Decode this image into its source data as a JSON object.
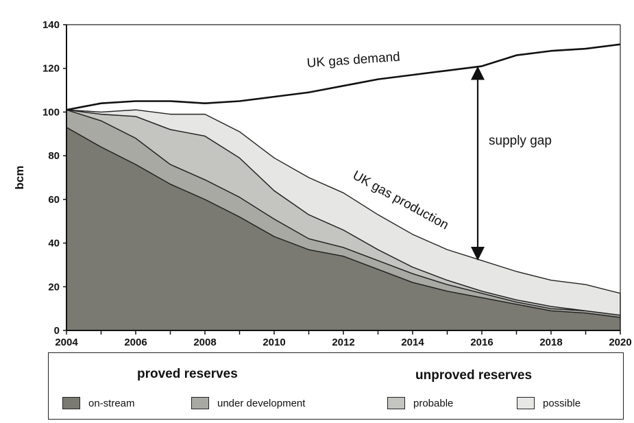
{
  "chart_data": {
    "type": "area",
    "stacked": true,
    "title": "",
    "xlabel": "",
    "ylabel": "bcm",
    "xlim": [
      2004,
      2020
    ],
    "ylim": [
      0,
      140
    ],
    "xticks": [
      2004,
      2006,
      2008,
      2010,
      2012,
      2014,
      2016,
      2018,
      2020
    ],
    "yticks": [
      0,
      20,
      40,
      60,
      80,
      100,
      120,
      140
    ],
    "x": [
      2004,
      2005,
      2006,
      2007,
      2008,
      2009,
      2010,
      2011,
      2012,
      2013,
      2014,
      2015,
      2016,
      2017,
      2018,
      2019,
      2020
    ],
    "series": [
      {
        "name": "on-stream",
        "color": "#7a7a72",
        "values": [
          93,
          84,
          76,
          67,
          60,
          52,
          43,
          37,
          34,
          28,
          22,
          18,
          15,
          12,
          9,
          8,
          6
        ]
      },
      {
        "name": "under development",
        "color": "#a9a9a4",
        "values": [
          8,
          12,
          12,
          9,
          9,
          9,
          8,
          5,
          4,
          4,
          4,
          3,
          2,
          1,
          1,
          1,
          1
        ]
      },
      {
        "name": "probable",
        "color": "#c4c4c0",
        "values": [
          0,
          3,
          10,
          16,
          20,
          18,
          13,
          11,
          8,
          5,
          3,
          2,
          1,
          1,
          1,
          0,
          0
        ]
      },
      {
        "name": "possible",
        "color": "#e6e6e4",
        "values": [
          0,
          1,
          3,
          7,
          10,
          12,
          15,
          17,
          17,
          16,
          15,
          14,
          14,
          13,
          12,
          12,
          10
        ]
      }
    ],
    "lines": [
      {
        "name": "UK gas demand",
        "color": "#111111",
        "values": [
          101,
          104,
          105,
          105,
          104,
          105,
          107,
          109,
          112,
          115,
          117,
          119,
          121,
          126,
          128,
          129,
          131
        ]
      }
    ],
    "annotations": {
      "demand_label": "UK gas demand",
      "production_label": "UK gas production",
      "gap_label": "supply gap",
      "gap_x": 2016
    },
    "grid": false,
    "legend": {
      "position": "bottom",
      "groups": [
        {
          "heading": "proved reserves",
          "items": [
            "on-stream",
            "under development"
          ]
        },
        {
          "heading": "unproved reserves",
          "items": [
            "probable",
            "possible"
          ]
        }
      ]
    }
  }
}
